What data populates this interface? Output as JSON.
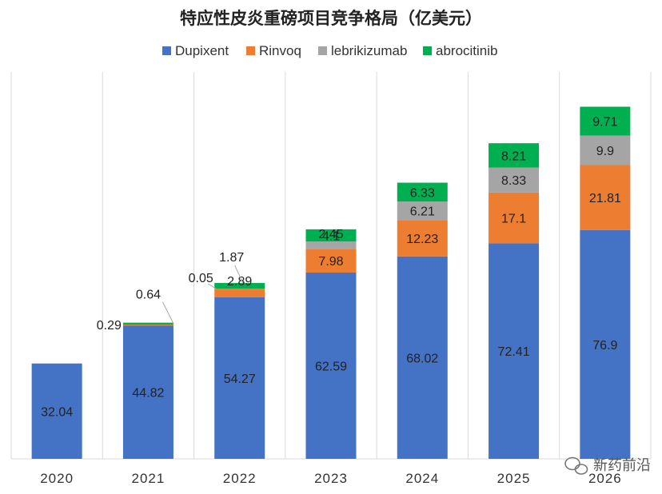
{
  "chart_data": {
    "type": "bar",
    "stacked": true,
    "title": "特应性皮炎重磅项目竞争格局（亿美元）",
    "categories": [
      "2020",
      "2021",
      "2022",
      "2023",
      "2024",
      "2025",
      "2026"
    ],
    "series": [
      {
        "name": "Dupixent",
        "color": "#4472C4",
        "values": [
          32.04,
          44.82,
          54.27,
          62.59,
          68.02,
          72.41,
          76.9
        ]
      },
      {
        "name": "Rinvoq",
        "color": "#ED7D31",
        "values": [
          null,
          0.29,
          2.89,
          7.98,
          12.23,
          17.1,
          21.81
        ]
      },
      {
        "name": "lebrikizumab",
        "color": "#A5A5A5",
        "values": [
          null,
          null,
          0.05,
          2.45,
          6.21,
          8.33,
          9.9
        ]
      },
      {
        "name": "abrocitinib",
        "color": "#00B050",
        "values": [
          null,
          0.64,
          1.87,
          4.1,
          6.33,
          8.21,
          9.71
        ]
      }
    ],
    "legend_position": "top",
    "grid": "vertical",
    "ylim": [
      0,
      130
    ]
  },
  "watermark": {
    "text": "新药前沿",
    "icon": "wechat-icon"
  }
}
